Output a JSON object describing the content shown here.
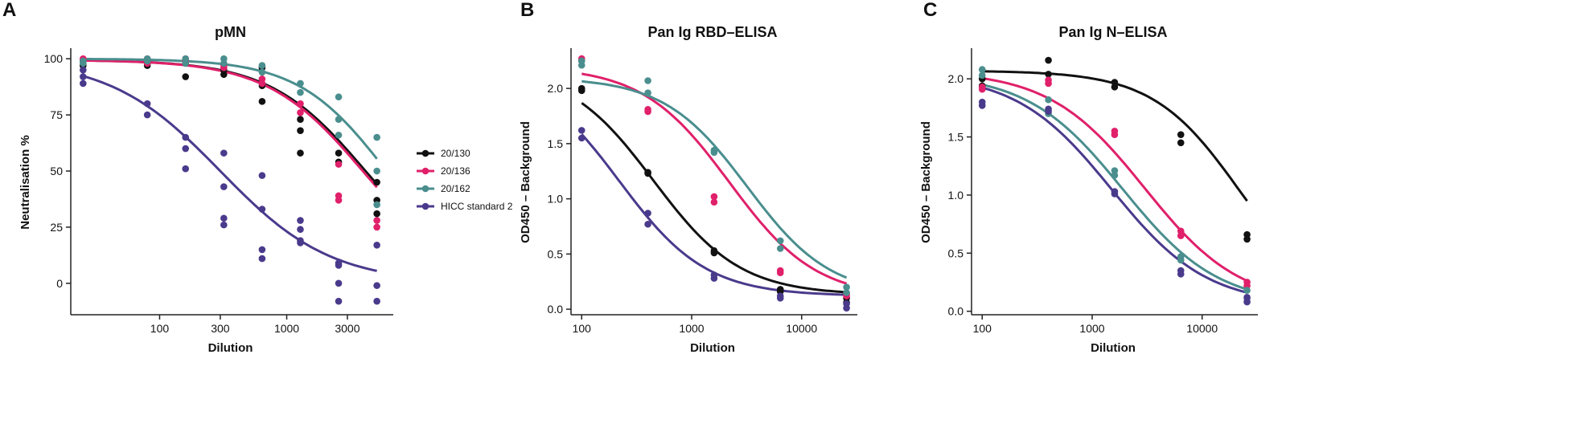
{
  "chart_data": [
    {
      "panel": "A",
      "type": "scatter",
      "title": "pMN",
      "xlabel": "Dilution",
      "ylabel": "Neutralisation %",
      "xscale": "log",
      "xlim": [
        20,
        6500
      ],
      "ylim": [
        -14,
        104
      ],
      "xticks": [
        100,
        300,
        1000,
        3000
      ],
      "xtick_labels": [
        "100",
        "300",
        "1000",
        "3000"
      ],
      "yticks": [
        0,
        25,
        50,
        75,
        100
      ],
      "ytick_labels": [
        "0",
        "25",
        "50",
        "75",
        "100"
      ],
      "x_doses": [
        25,
        80,
        160,
        320,
        640,
        1280,
        2560,
        5120
      ],
      "series": [
        {
          "name": "20/130",
          "color": "#111111",
          "curve": {
            "top": 99.5,
            "bottom": 0,
            "ec50": 4200,
            "hill": 1.15
          },
          "points": [
            [
              25,
              99
            ],
            [
              25,
              97
            ],
            [
              80,
              97
            ],
            [
              80,
              99
            ],
            [
              160,
              92
            ],
            [
              160,
              98
            ],
            [
              320,
              93
            ],
            [
              320,
              95
            ],
            [
              640,
              81
            ],
            [
              640,
              88
            ],
            [
              640,
              96
            ],
            [
              1280,
              58
            ],
            [
              1280,
              68
            ],
            [
              1280,
              73
            ],
            [
              2560,
              58
            ],
            [
              2560,
              54
            ],
            [
              5120,
              45
            ],
            [
              5120,
              37
            ],
            [
              5120,
              31
            ]
          ]
        },
        {
          "name": "20/136",
          "color": "#e0206a",
          "curve": {
            "top": 99.5,
            "bottom": 0,
            "ec50": 4000,
            "hill": 1.15
          },
          "points": [
            [
              25,
              99
            ],
            [
              25,
              100
            ],
            [
              80,
              98
            ],
            [
              80,
              100
            ],
            [
              160,
              99
            ],
            [
              160,
              100
            ],
            [
              320,
              96
            ],
            [
              320,
              97
            ],
            [
              640,
              91
            ],
            [
              640,
              89
            ],
            [
              1280,
              80
            ],
            [
              1280,
              76
            ],
            [
              2560,
              39
            ],
            [
              2560,
              37
            ],
            [
              2560,
              53
            ],
            [
              5120,
              28
            ],
            [
              5120,
              25
            ]
          ]
        },
        {
          "name": "20/162",
          "color": "#4a8e8e",
          "curve": {
            "top": 100,
            "bottom": 0,
            "ec50": 6100,
            "hill": 1.25
          },
          "points": [
            [
              25,
              99
            ],
            [
              25,
              98
            ],
            [
              80,
              99
            ],
            [
              80,
              100
            ],
            [
              160,
              98
            ],
            [
              160,
              100
            ],
            [
              320,
              100
            ],
            [
              320,
              98
            ],
            [
              640,
              97
            ],
            [
              640,
              94
            ],
            [
              1280,
              89
            ],
            [
              1280,
              85
            ],
            [
              2560,
              83
            ],
            [
              2560,
              73
            ],
            [
              2560,
              66
            ],
            [
              5120,
              65
            ],
            [
              5120,
              50
            ],
            [
              5120,
              35
            ]
          ]
        },
        {
          "name": "HICC standard 2",
          "color": "#4a3a8c",
          "curve": {
            "top": 100,
            "bottom": 0,
            "ec50": 300,
            "hill": 1.0
          },
          "points": [
            [
              25,
              95
            ],
            [
              25,
              92
            ],
            [
              25,
              89
            ],
            [
              80,
              80
            ],
            [
              80,
              75
            ],
            [
              160,
              65
            ],
            [
              160,
              60
            ],
            [
              160,
              51
            ],
            [
              320,
              58
            ],
            [
              320,
              43
            ],
            [
              320,
              29
            ],
            [
              320,
              26
            ],
            [
              640,
              48
            ],
            [
              640,
              33
            ],
            [
              640,
              15
            ],
            [
              640,
              11
            ],
            [
              1280,
              28
            ],
            [
              1280,
              24
            ],
            [
              1280,
              19
            ],
            [
              1280,
              18
            ],
            [
              2560,
              9
            ],
            [
              2560,
              8
            ],
            [
              2560,
              0
            ],
            [
              2560,
              -8
            ],
            [
              5120,
              17
            ],
            [
              5120,
              -1
            ],
            [
              5120,
              -8
            ]
          ]
        }
      ],
      "legend": {
        "position": "right",
        "entries": [
          {
            "label": "20/130",
            "color": "#111111"
          },
          {
            "label": "20/136",
            "color": "#e0206a"
          },
          {
            "label": "20/162",
            "color": "#4a8e8e"
          },
          {
            "label": "HICC standard 2",
            "color": "#4a3a8c"
          }
        ]
      }
    },
    {
      "panel": "B",
      "type": "scatter",
      "title": "Pan Ig RBD–ELISA",
      "xlabel": "Dilution",
      "ylabel": "OD450 – Background",
      "xscale": "log",
      "xlim": [
        80,
        30000
      ],
      "ylim": [
        -0.05,
        2.35
      ],
      "xticks": [
        100,
        1000,
        10000
      ],
      "xtick_labels": [
        "100",
        "1000",
        "10000"
      ],
      "yticks": [
        0,
        0.5,
        1,
        1.5,
        2
      ],
      "ytick_labels": [
        "0.0",
        "0.5",
        "1.0",
        "1.5",
        "2.0"
      ],
      "x_doses": [
        100,
        400,
        1600,
        6400,
        25600
      ],
      "series": [
        {
          "name": "20/130",
          "color": "#111111",
          "curve": {
            "top": 2.2,
            "bottom": 0.13,
            "ec50": 450,
            "hill": 1.1
          },
          "points": [
            [
              100,
              2.0
            ],
            [
              100,
              1.98
            ],
            [
              400,
              1.24
            ],
            [
              400,
              1.23
            ],
            [
              1600,
              0.53
            ],
            [
              1600,
              0.51
            ],
            [
              6400,
              0.18
            ],
            [
              6400,
              0.16
            ],
            [
              25600,
              0.1
            ],
            [
              25600,
              0.06
            ]
          ]
        },
        {
          "name": "20/136",
          "color": "#e0206a",
          "curve": {
            "top": 2.2,
            "bottom": 0.1,
            "ec50": 2200,
            "hill": 1.1
          },
          "points": [
            [
              100,
              2.27
            ],
            [
              100,
              2.25
            ],
            [
              400,
              1.81
            ],
            [
              400,
              1.79
            ],
            [
              1600,
              1.02
            ],
            [
              1600,
              0.97
            ],
            [
              6400,
              0.35
            ],
            [
              6400,
              0.33
            ],
            [
              25600,
              0.14
            ],
            [
              25600,
              0.12
            ]
          ]
        },
        {
          "name": "20/162",
          "color": "#4a8e8e",
          "curve": {
            "top": 2.1,
            "bottom": 0.12,
            "ec50": 3200,
            "hill": 1.15
          },
          "points": [
            [
              100,
              2.25
            ],
            [
              100,
              2.21
            ],
            [
              400,
              2.07
            ],
            [
              400,
              1.96
            ],
            [
              1600,
              1.44
            ],
            [
              1600,
              1.42
            ],
            [
              6400,
              0.62
            ],
            [
              6400,
              0.55
            ],
            [
              25600,
              0.2
            ],
            [
              25600,
              0.15
            ]
          ]
        },
        {
          "name": "HICC standard 2",
          "color": "#4a3a8c",
          "curve": {
            "top": 2.2,
            "bottom": 0.12,
            "ec50": 220,
            "hill": 1.1
          },
          "points": [
            [
              100,
              1.62
            ],
            [
              100,
              1.55
            ],
            [
              400,
              0.87
            ],
            [
              400,
              0.77
            ],
            [
              1600,
              0.31
            ],
            [
              1600,
              0.28
            ],
            [
              6400,
              0.12
            ],
            [
              6400,
              0.1
            ],
            [
              25600,
              0.05
            ],
            [
              25600,
              0.01
            ]
          ]
        }
      ]
    },
    {
      "panel": "C",
      "type": "scatter",
      "title": "Pan Ig N–ELISA",
      "xlabel": "Dilution",
      "ylabel": "OD450 – Background",
      "xscale": "log",
      "xlim": [
        80,
        30000
      ],
      "ylim": [
        -0.03,
        2.25
      ],
      "xticks": [
        100,
        1000,
        10000
      ],
      "xtick_labels": [
        "100",
        "1000",
        "10000"
      ],
      "yticks": [
        0,
        0.5,
        1,
        1.5,
        2
      ],
      "ytick_labels": [
        "0.0",
        "0.5",
        "1.0",
        "1.5",
        "2.0"
      ],
      "x_doses": [
        100,
        400,
        1600,
        6400,
        25600
      ],
      "series": [
        {
          "name": "20/130",
          "color": "#111111",
          "curve": {
            "top": 2.07,
            "bottom": 0,
            "ec50": 22000,
            "hill": 1.1
          },
          "points": [
            [
              100,
              1.94
            ],
            [
              100,
              2.0
            ],
            [
              400,
              2.16
            ],
            [
              400,
              2.04
            ],
            [
              1600,
              1.97
            ],
            [
              1600,
              1.93
            ],
            [
              6400,
              1.52
            ],
            [
              6400,
              1.45
            ],
            [
              25600,
              0.66
            ],
            [
              25600,
              0.62
            ]
          ]
        },
        {
          "name": "20/136",
          "color": "#e0206a",
          "curve": {
            "top": 2.07,
            "bottom": 0.05,
            "ec50": 3000,
            "hill": 1.0
          },
          "points": [
            [
              100,
              1.93
            ],
            [
              100,
              1.91
            ],
            [
              400,
              1.99
            ],
            [
              400,
              1.96
            ],
            [
              1600,
              1.55
            ],
            [
              1600,
              1.52
            ],
            [
              6400,
              0.69
            ],
            [
              6400,
              0.65
            ],
            [
              25600,
              0.25
            ],
            [
              25600,
              0.22
            ]
          ]
        },
        {
          "name": "20/162",
          "color": "#4a8e8e",
          "curve": {
            "top": 2.05,
            "bottom": 0.05,
            "ec50": 1900,
            "hill": 1.0
          },
          "points": [
            [
              100,
              2.08
            ],
            [
              100,
              2.03
            ],
            [
              400,
              1.82
            ],
            [
              400,
              1.7
            ],
            [
              1600,
              1.21
            ],
            [
              1600,
              1.17
            ],
            [
              6400,
              0.47
            ],
            [
              6400,
              0.44
            ],
            [
              25600,
              0.18
            ],
            [
              25600,
              0.11
            ]
          ]
        },
        {
          "name": "HICC standard 2",
          "color": "#4a3a8c",
          "curve": {
            "top": 2.05,
            "bottom": 0.05,
            "ec50": 1500,
            "hill": 1.0
          },
          "points": [
            [
              100,
              1.8
            ],
            [
              100,
              1.77
            ],
            [
              400,
              1.74
            ],
            [
              400,
              1.72
            ],
            [
              1600,
              1.03
            ],
            [
              1600,
              1.01
            ],
            [
              6400,
              0.35
            ],
            [
              6400,
              0.32
            ],
            [
              25600,
              0.12
            ],
            [
              25600,
              0.08
            ]
          ]
        }
      ]
    }
  ]
}
